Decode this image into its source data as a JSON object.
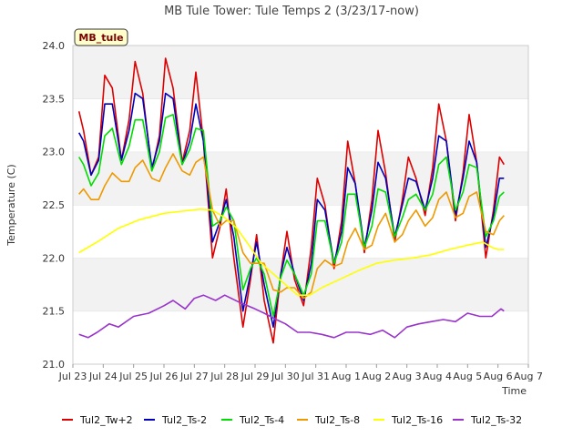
{
  "chart_data": {
    "type": "line",
    "title": "MB Tule Tower: Tule Temps 2 (3/23/17-now)",
    "xlabel": "Time",
    "ylabel": "Temperature (C)",
    "badge": "MB_tule",
    "xlim": [
      0,
      15
    ],
    "ylim": [
      21.0,
      24.0
    ],
    "yticks": [
      21.0,
      21.5,
      22.0,
      22.5,
      23.0,
      23.5,
      24.0
    ],
    "yticklabels": [
      "21.0",
      "21.5",
      "22.0",
      "22.5",
      "23.0",
      "23.5",
      "24.0"
    ],
    "xticks": [
      0,
      1,
      2,
      3,
      4,
      5,
      6,
      7,
      8,
      9,
      10,
      11,
      12,
      13,
      14,
      15
    ],
    "xticklabels": [
      "Jul 23",
      "Jul 24",
      "Jul 25",
      "Jul 26",
      "Jul 27",
      "Jul 28",
      "Jul 29",
      "Jul 30",
      "Jul 31",
      "Aug 1",
      "Aug 2",
      "Aug 3",
      "Aug 4",
      "Aug 5",
      "Aug 6",
      "Aug 7"
    ],
    "grid": "horizontal bands",
    "legend": "bottom",
    "series": [
      {
        "name": "Tul2_Tw+2",
        "color": "#dd0000",
        "x": [
          0.2,
          0.35,
          0.6,
          0.85,
          1.05,
          1.3,
          1.6,
          1.85,
          2.05,
          2.3,
          2.6,
          2.85,
          3.05,
          3.3,
          3.6,
          3.85,
          4.05,
          4.3,
          4.6,
          4.85,
          5.05,
          5.3,
          5.6,
          5.85,
          6.05,
          6.3,
          6.6,
          6.85,
          7.05,
          7.3,
          7.6,
          7.85,
          8.05,
          8.3,
          8.6,
          8.85,
          9.05,
          9.3,
          9.6,
          9.85,
          10.05,
          10.3,
          10.6,
          10.85,
          11.05,
          11.3,
          11.6,
          11.85,
          12.05,
          12.3,
          12.6,
          12.85,
          13.05,
          13.3,
          13.6,
          13.85,
          14.05,
          14.2
        ],
        "y": [
          23.38,
          23.2,
          22.78,
          22.95,
          23.72,
          23.6,
          22.92,
          23.3,
          23.85,
          23.55,
          22.82,
          23.15,
          23.88,
          23.6,
          22.9,
          23.2,
          23.75,
          23.1,
          22.0,
          22.3,
          22.65,
          22.0,
          21.35,
          21.8,
          22.22,
          21.6,
          21.2,
          21.85,
          22.25,
          21.8,
          21.55,
          22.1,
          22.75,
          22.5,
          21.9,
          22.35,
          23.1,
          22.7,
          22.05,
          22.55,
          23.2,
          22.8,
          22.15,
          22.55,
          22.95,
          22.75,
          22.4,
          22.85,
          23.45,
          23.1,
          22.35,
          22.8,
          23.35,
          22.9,
          22.0,
          22.45,
          22.95,
          22.88
        ]
      },
      {
        "name": "Tul2_Ts-2",
        "color": "#0000bb",
        "x": [
          0.2,
          0.35,
          0.6,
          0.85,
          1.05,
          1.3,
          1.6,
          1.85,
          2.05,
          2.3,
          2.6,
          2.85,
          3.05,
          3.3,
          3.6,
          3.85,
          4.05,
          4.3,
          4.6,
          4.85,
          5.05,
          5.3,
          5.6,
          5.85,
          6.05,
          6.3,
          6.6,
          6.85,
          7.05,
          7.3,
          7.6,
          7.85,
          8.05,
          8.3,
          8.6,
          8.85,
          9.05,
          9.3,
          9.6,
          9.85,
          10.05,
          10.3,
          10.6,
          10.85,
          11.05,
          11.3,
          11.6,
          11.85,
          12.05,
          12.3,
          12.6,
          12.85,
          13.05,
          13.3,
          13.6,
          13.85,
          14.05,
          14.2
        ],
        "y": [
          23.18,
          23.1,
          22.78,
          22.92,
          23.45,
          23.45,
          22.92,
          23.2,
          23.55,
          23.5,
          22.85,
          23.1,
          23.55,
          23.5,
          22.88,
          23.1,
          23.45,
          23.1,
          22.15,
          22.35,
          22.55,
          22.2,
          21.5,
          21.85,
          22.15,
          21.75,
          21.35,
          21.85,
          22.1,
          21.85,
          21.6,
          21.95,
          22.55,
          22.45,
          21.95,
          22.25,
          22.85,
          22.7,
          22.1,
          22.45,
          22.9,
          22.75,
          22.2,
          22.5,
          22.75,
          22.72,
          22.45,
          22.75,
          23.15,
          23.1,
          22.4,
          22.75,
          23.1,
          22.9,
          22.1,
          22.4,
          22.75,
          22.75
        ]
      },
      {
        "name": "Tul2_Ts-4",
        "color": "#00dd00",
        "x": [
          0.2,
          0.35,
          0.6,
          0.85,
          1.05,
          1.3,
          1.6,
          1.85,
          2.05,
          2.3,
          2.6,
          2.85,
          3.05,
          3.3,
          3.6,
          3.85,
          4.05,
          4.3,
          4.6,
          4.85,
          5.05,
          5.3,
          5.6,
          5.85,
          6.05,
          6.3,
          6.6,
          6.85,
          7.05,
          7.3,
          7.6,
          7.85,
          8.05,
          8.3,
          8.6,
          8.85,
          9.05,
          9.3,
          9.6,
          9.85,
          10.05,
          10.3,
          10.6,
          10.85,
          11.05,
          11.3,
          11.6,
          11.85,
          12.05,
          12.3,
          12.6,
          12.85,
          13.05,
          13.3,
          13.6,
          13.85,
          14.05,
          14.2
        ],
        "y": [
          22.95,
          22.88,
          22.68,
          22.8,
          23.15,
          23.22,
          22.88,
          23.05,
          23.3,
          23.3,
          22.82,
          23.0,
          23.32,
          23.35,
          22.88,
          23.02,
          23.22,
          23.2,
          22.3,
          22.35,
          22.48,
          22.35,
          21.7,
          21.9,
          22.0,
          21.85,
          21.45,
          21.82,
          21.98,
          21.85,
          21.65,
          21.85,
          22.35,
          22.35,
          21.95,
          22.15,
          22.6,
          22.6,
          22.1,
          22.3,
          22.65,
          22.62,
          22.2,
          22.38,
          22.55,
          22.6,
          22.45,
          22.6,
          22.88,
          22.95,
          22.45,
          22.62,
          22.88,
          22.85,
          22.2,
          22.35,
          22.58,
          22.62
        ]
      },
      {
        "name": "Tul2_Ts-8",
        "color": "#ee9900",
        "x": [
          0.2,
          0.35,
          0.6,
          0.85,
          1.05,
          1.3,
          1.6,
          1.85,
          2.05,
          2.3,
          2.6,
          2.85,
          3.05,
          3.3,
          3.6,
          3.85,
          4.05,
          4.3,
          4.6,
          4.85,
          5.05,
          5.3,
          5.6,
          5.85,
          6.05,
          6.3,
          6.6,
          6.85,
          7.05,
          7.3,
          7.6,
          7.85,
          8.05,
          8.3,
          8.6,
          8.85,
          9.05,
          9.3,
          9.6,
          9.85,
          10.05,
          10.3,
          10.6,
          10.85,
          11.05,
          11.3,
          11.6,
          11.85,
          12.05,
          12.3,
          12.6,
          12.85,
          13.05,
          13.3,
          13.6,
          13.85,
          14.05,
          14.2
        ],
        "y": [
          22.6,
          22.65,
          22.55,
          22.55,
          22.68,
          22.8,
          22.72,
          22.72,
          22.85,
          22.92,
          22.75,
          22.72,
          22.85,
          22.98,
          22.82,
          22.78,
          22.9,
          22.95,
          22.45,
          22.3,
          22.35,
          22.35,
          22.05,
          21.95,
          21.95,
          21.95,
          21.7,
          21.68,
          21.72,
          21.72,
          21.62,
          21.68,
          21.9,
          21.98,
          21.92,
          21.95,
          22.15,
          22.28,
          22.08,
          22.12,
          22.3,
          22.42,
          22.15,
          22.22,
          22.35,
          22.45,
          22.3,
          22.38,
          22.55,
          22.62,
          22.38,
          22.42,
          22.58,
          22.62,
          22.25,
          22.22,
          22.35,
          22.4
        ]
      },
      {
        "name": "Tul2_Ts-16",
        "color": "#ffff00",
        "x": [
          0.2,
          0.8,
          1.5,
          2.2,
          3.0,
          3.6,
          4.2,
          4.6,
          5.0,
          5.4,
          5.8,
          6.2,
          6.6,
          7.0,
          7.4,
          7.8,
          8.2,
          8.8,
          9.4,
          10.0,
          10.6,
          11.2,
          11.8,
          12.4,
          13.0,
          13.5,
          13.8,
          14.0,
          14.2
        ],
        "y": [
          22.05,
          22.15,
          22.28,
          22.36,
          22.42,
          22.44,
          22.46,
          22.45,
          22.38,
          22.28,
          22.12,
          21.95,
          21.85,
          21.75,
          21.65,
          21.65,
          21.72,
          21.8,
          21.88,
          21.95,
          21.98,
          22.0,
          22.03,
          22.08,
          22.12,
          22.15,
          22.1,
          22.08,
          22.08
        ]
      },
      {
        "name": "Tul2_Ts-32",
        "color": "#9933cc",
        "x": [
          0.2,
          0.5,
          0.8,
          1.2,
          1.5,
          2.0,
          2.5,
          3.0,
          3.3,
          3.7,
          4.0,
          4.3,
          4.7,
          5.0,
          5.5,
          6.0,
          6.3,
          6.7,
          7.0,
          7.4,
          7.8,
          8.2,
          8.6,
          9.0,
          9.4,
          9.8,
          10.2,
          10.6,
          11.0,
          11.4,
          11.8,
          12.2,
          12.6,
          13.0,
          13.4,
          13.8,
          14.1,
          14.2
        ],
        "y": [
          21.28,
          21.25,
          21.3,
          21.38,
          21.35,
          21.45,
          21.48,
          21.55,
          21.6,
          21.52,
          21.62,
          21.65,
          21.6,
          21.65,
          21.58,
          21.52,
          21.48,
          21.42,
          21.38,
          21.3,
          21.3,
          21.28,
          21.25,
          21.3,
          21.3,
          21.28,
          21.32,
          21.25,
          21.35,
          21.38,
          21.4,
          21.42,
          21.4,
          21.48,
          21.45,
          21.45,
          21.52,
          21.5
        ]
      }
    ]
  }
}
